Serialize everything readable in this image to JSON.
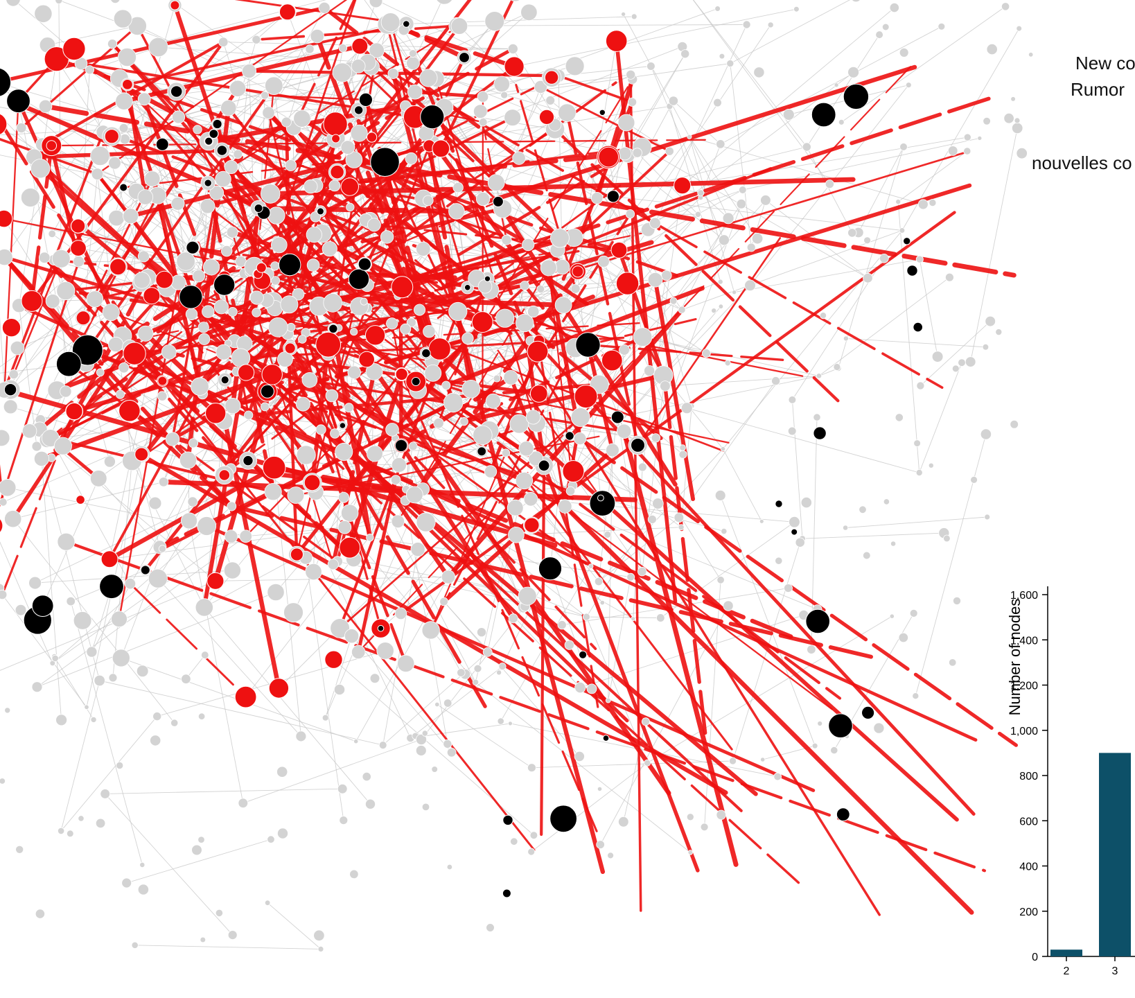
{
  "legend": {
    "line1": "New co",
    "line2": "Rumor",
    "line3": "nouvelles co"
  },
  "colors": {
    "background": "#ffffff",
    "edge_gray": "#c8c8c8",
    "node_gray": "#d3d3d3",
    "rumor_red": "#ee1111",
    "node_black": "#000000",
    "bar_fill": "#0d5068"
  },
  "chart_data": {
    "type": "bar",
    "ylabel": "Number of nodes",
    "xlabel": "",
    "ylim": [
      0,
      1600
    ],
    "yticks": [
      "0",
      "200",
      "400",
      "600",
      "800",
      "1,000",
      "1,200",
      "1,400",
      "1,600"
    ],
    "categories": [
      "2",
      "3"
    ],
    "values": [
      30,
      900
    ]
  }
}
